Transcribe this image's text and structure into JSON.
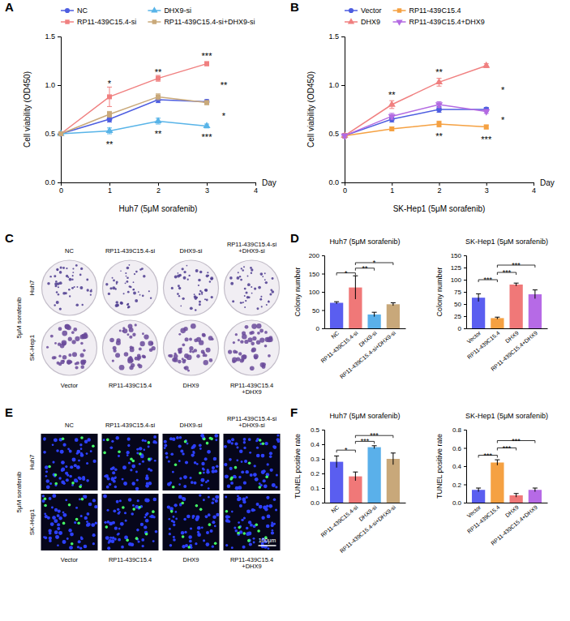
{
  "chart_data": [
    {
      "panel": "A",
      "type": "line",
      "title": "Huh7 (5μM sorafenib)",
      "x_label": "Day",
      "y_label": "Cell viability (OD450)",
      "x": [
        0,
        1,
        2,
        3
      ],
      "xlim": [
        0,
        4
      ],
      "xticks": [
        0,
        1,
        2,
        3,
        4
      ],
      "ylim": [
        0,
        1.5
      ],
      "yticks": [
        {
          "value": 0,
          "label": "0.0"
        },
        {
          "value": 0.5,
          "label": "0.5"
        },
        {
          "value": 1,
          "label": "1.0"
        },
        {
          "value": 1.5,
          "label": "1.5"
        }
      ],
      "legend": "top",
      "series": [
        {
          "name": "NC",
          "color": "#4d5de0",
          "marker": "circle",
          "values": [
            0.5,
            0.65,
            0.85,
            0.83
          ],
          "errors": [
            0.02,
            0.03,
            0.03,
            0.02
          ]
        },
        {
          "name": "RP11-439C15.4-si",
          "color": "#f08080",
          "marker": "square",
          "values": [
            0.5,
            0.88,
            1.07,
            1.22
          ],
          "errors": [
            0.02,
            0.1,
            0.03,
            0.02
          ]
        },
        {
          "name": "DHX9-si",
          "color": "#58b4e8",
          "marker": "triangle",
          "values": [
            0.5,
            0.53,
            0.63,
            0.58
          ],
          "errors": [
            0.02,
            0.03,
            0.03,
            0.02
          ]
        },
        {
          "name": "RP11-439C15.4-si+DHX9-si",
          "color": "#c9a97a",
          "marker": "square",
          "values": [
            0.5,
            0.7,
            0.88,
            0.82
          ],
          "errors": [
            0.02,
            0.03,
            0.03,
            0.02
          ]
        }
      ],
      "annotations": [
        {
          "text": "*",
          "x": 1,
          "y": 1.03
        },
        {
          "text": "**",
          "x": 1,
          "y": 0.41
        },
        {
          "text": "**",
          "x": 2,
          "y": 1.15
        },
        {
          "text": "**",
          "x": 2,
          "y": 0.52
        },
        {
          "text": "***",
          "x": 3,
          "y": 1.32
        },
        {
          "text": "***",
          "x": 3,
          "y": 0.48
        },
        {
          "text": "**",
          "x": 3.35,
          "y": 1.02
        },
        {
          "text": "*",
          "x": 3.35,
          "y": 0.7
        }
      ]
    },
    {
      "panel": "B",
      "type": "line",
      "title": "SK-Hep1 (5μM sorafenib)",
      "x_label": "Day",
      "y_label": "Cell viability (OD450)",
      "x": [
        0,
        1,
        2,
        3
      ],
      "xlim": [
        0,
        4
      ],
      "xticks": [
        0,
        1,
        2,
        3,
        4
      ],
      "ylim": [
        0,
        1.5
      ],
      "yticks": [
        {
          "value": 0,
          "label": "0.0"
        },
        {
          "value": 0.5,
          "label": "0.5"
        },
        {
          "value": 1,
          "label": "1.0"
        },
        {
          "value": 1.5,
          "label": "1.5"
        }
      ],
      "legend": "top",
      "series": [
        {
          "name": "Vector",
          "color": "#4d5de0",
          "marker": "circle",
          "values": [
            0.48,
            0.65,
            0.75,
            0.75
          ],
          "errors": [
            0.02,
            0.03,
            0.03,
            0.02
          ]
        },
        {
          "name": "DHX9",
          "color": "#f08080",
          "marker": "triangle",
          "values": [
            0.48,
            0.8,
            1.03,
            1.2
          ],
          "errors": [
            0.02,
            0.04,
            0.04,
            0.02
          ]
        },
        {
          "name": "RP11-439C15.4",
          "color": "#f5a142",
          "marker": "square",
          "values": [
            0.48,
            0.55,
            0.6,
            0.57
          ],
          "errors": [
            0.02,
            0.02,
            0.03,
            0.02
          ]
        },
        {
          "name": "RP11-439C15.4+DHX9",
          "color": "#b36ae2",
          "marker": "triangle-down",
          "values": [
            0.48,
            0.68,
            0.8,
            0.73
          ],
          "errors": [
            0.02,
            0.03,
            0.03,
            0.02
          ]
        }
      ],
      "annotations": [
        {
          "text": "**",
          "x": 1,
          "y": 0.92
        },
        {
          "text": "**",
          "x": 2,
          "y": 1.15
        },
        {
          "text": "**",
          "x": 2,
          "y": 0.49
        },
        {
          "text": "***",
          "x": 3,
          "y": 0.46
        },
        {
          "text": "*",
          "x": 3.35,
          "y": 0.97
        },
        {
          "text": "*",
          "x": 3.35,
          "y": 0.66
        }
      ]
    },
    {
      "panel": "D",
      "type": "bar",
      "title": "Huh7 (5μM sorafenib)",
      "y_label": "Colony number",
      "categories": [
        "NC",
        "RP11-439C15.4-si",
        "DHX9-si",
        "RP11-439C15.4-si+DHX9-si"
      ],
      "values": [
        70,
        112,
        38,
        66
      ],
      "errors": [
        3,
        32,
        6,
        4
      ],
      "colors": [
        "#5a5ef0",
        "#f07878",
        "#5ab0ea",
        "#c8a87a"
      ],
      "ylim": [
        0,
        200
      ],
      "yticks": [
        0,
        50,
        100,
        150,
        200
      ],
      "comparisons": [
        {
          "groups": [
            0,
            1
          ],
          "text": "*",
          "y": 152
        },
        {
          "groups": [
            1,
            2
          ],
          "text": "**",
          "y": 165
        },
        {
          "groups": [
            1,
            3
          ],
          "text": "*",
          "y": 180
        }
      ]
    },
    {
      "type": "bar",
      "title": "SK-Hep1 (5μM sorafenib)",
      "y_label": "Colony number",
      "categories": [
        "Vector",
        "RP11-439C15.4",
        "DHX9",
        "RP11-439C15.4+DHX9"
      ],
      "values": [
        63,
        21,
        90,
        70
      ],
      "errors": [
        8,
        2,
        3,
        9
      ],
      "colors": [
        "#5a5ef0",
        "#f5a142",
        "#f07878",
        "#b66ae6"
      ],
      "ylim": [
        0,
        150
      ],
      "yticks": [
        0,
        25,
        50,
        75,
        100,
        125,
        150
      ],
      "comparisons": [
        {
          "groups": [
            0,
            1
          ],
          "text": "***",
          "y": 100
        },
        {
          "groups": [
            1,
            2
          ],
          "text": "***",
          "y": 115
        },
        {
          "groups": [
            1,
            3
          ],
          "text": "***",
          "y": 130
        }
      ]
    },
    {
      "panel": "F",
      "type": "bar",
      "title": "Huh7 (5μM sorafenib)",
      "y_label": "TUNEL positive rate",
      "categories": [
        "NC",
        "RP11-439C15.4-si",
        "DHX9-si",
        "RP11-439C15.4-si+DHX9-si"
      ],
      "values": [
        0.28,
        0.18,
        0.38,
        0.3
      ],
      "errors": [
        0.04,
        0.03,
        0.01,
        0.04
      ],
      "colors": [
        "#5a5ef0",
        "#f07878",
        "#5ab0ea",
        "#c8a87a"
      ],
      "ylim": [
        0,
        0.5
      ],
      "yticks": [
        {
          "value": 0,
          "label": "0.0"
        },
        {
          "value": 0.1,
          "label": "0.1"
        },
        {
          "value": 0.2,
          "label": "0.2"
        },
        {
          "value": 0.3,
          "label": "0.3"
        },
        {
          "value": 0.4,
          "label": "0.4"
        },
        {
          "value": 0.5,
          "label": "0.5"
        }
      ],
      "comparisons": [
        {
          "groups": [
            0,
            1
          ],
          "text": "*",
          "y": 0.36
        },
        {
          "groups": [
            1,
            2
          ],
          "text": "***",
          "y": 0.42
        },
        {
          "groups": [
            1,
            3
          ],
          "text": "***",
          "y": 0.46
        }
      ]
    },
    {
      "type": "bar",
      "title": "SK-Hep1 (5μM sorafenib)",
      "y_label": "TUNEL positive rate",
      "categories": [
        "Vector",
        "RP11-439C15.4",
        "DHX9",
        "RP11-439C15.4+DHX9"
      ],
      "values": [
        0.14,
        0.44,
        0.08,
        0.14
      ],
      "errors": [
        0.02,
        0.03,
        0.02,
        0.02
      ],
      "colors": [
        "#5a5ef0",
        "#f5a142",
        "#f07878",
        "#b66ae6"
      ],
      "ylim": [
        0,
        0.8
      ],
      "yticks": [
        {
          "value": 0,
          "label": "0.0"
        },
        {
          "value": 0.2,
          "label": "0.2"
        },
        {
          "value": 0.4,
          "label": "0.4"
        },
        {
          "value": 0.6,
          "label": "0.6"
        },
        {
          "value": 0.8,
          "label": "0.8"
        }
      ],
      "comparisons": [
        {
          "groups": [
            0,
            1
          ],
          "text": "***",
          "y": 0.52
        },
        {
          "groups": [
            1,
            2
          ],
          "text": "***",
          "y": 0.6
        },
        {
          "groups": [
            1,
            3
          ],
          "text": "***",
          "y": 0.68
        }
      ]
    }
  ],
  "images": [
    {
      "panel": "C",
      "type": "colony-image",
      "side_label": "5μM sorafenib",
      "row_labels": [
        "Huh7",
        "SK-Hep1"
      ],
      "top_labels": [
        "NC",
        "RP11-439C15.4-si",
        "DHX9-si",
        "RP11-439C15.4-si+DHX9-si"
      ],
      "bottom_labels": [
        "Vector",
        "RP11-439C15.4",
        "DHX9",
        "RP11-439C15.4+DHX9"
      ]
    },
    {
      "panel": "E",
      "type": "fluorescence-image",
      "side_label": "5μM sorafenib",
      "row_labels": [
        "Huh7",
        "SK-Hep1"
      ],
      "top_labels": [
        "NC",
        "RP11-439C15.4-si",
        "DHX9-si",
        "RP11-439C15.4-si+DHX9-si"
      ],
      "bottom_labels": [
        "Vector",
        "RP11-439C15.4",
        "DHX9",
        "RP11-439C15.4+DHX9"
      ],
      "scale_bar": "100μm"
    }
  ]
}
